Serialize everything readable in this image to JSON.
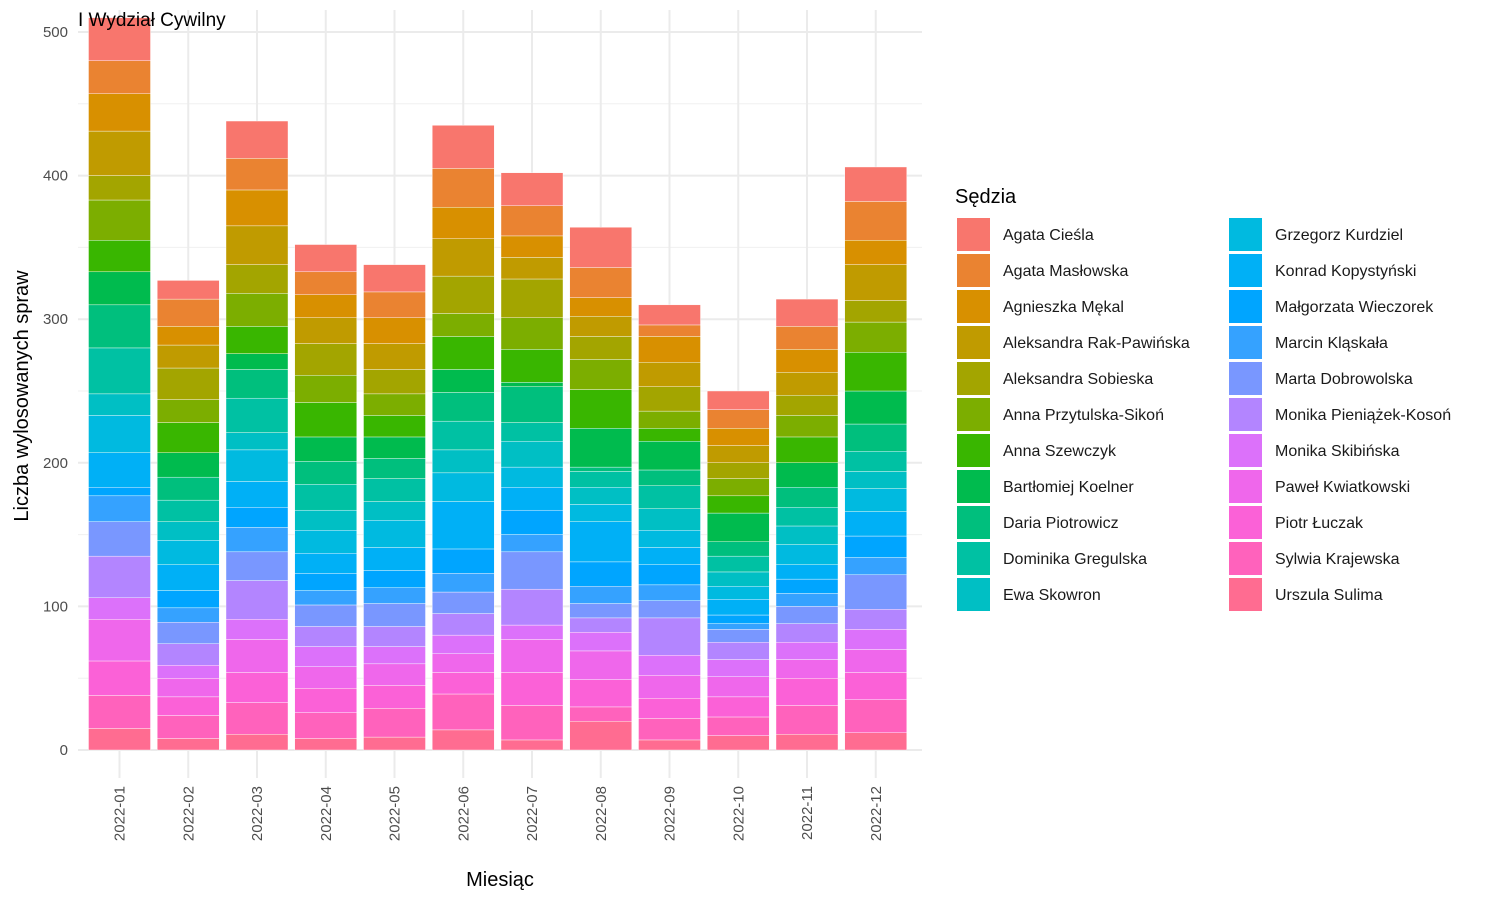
{
  "chart_data": {
    "type": "bar",
    "stacked": true,
    "title": "I Wydział Cywilny",
    "xlabel": "Miesiąc",
    "ylabel": "Liczba wylosowanych spraw",
    "ylim": [
      0,
      510
    ],
    "yticks": [
      0,
      100,
      200,
      300,
      400,
      500
    ],
    "grid": true,
    "legend_title": "Sędzia",
    "legend_position": "right",
    "categories": [
      "2022-01",
      "2022-02",
      "2022-03",
      "2022-04",
      "2022-05",
      "2022-06",
      "2022-07",
      "2022-08",
      "2022-09",
      "2022-10",
      "2022-11",
      "2022-12"
    ],
    "series": [
      {
        "name": "Agata Cieśla",
        "color": "#F8766D",
        "values": [
          30,
          13,
          26,
          19,
          19,
          30,
          23,
          28,
          14,
          13,
          19,
          24
        ]
      },
      {
        "name": "Agata Masłowska",
        "color": "#EA8331",
        "values": [
          23,
          19,
          22,
          16,
          18,
          27,
          21,
          21,
          8,
          13,
          16,
          27
        ]
      },
      {
        "name": "Agnieszka Mękal",
        "color": "#D89000",
        "values": [
          26,
          13,
          25,
          16,
          18,
          22,
          15,
          13,
          18,
          12,
          16,
          17
        ]
      },
      {
        "name": "Aleksandra Rak-Pawińska",
        "color": "#C09B00",
        "values": [
          31,
          16,
          27,
          18,
          18,
          26,
          15,
          14,
          17,
          12,
          16,
          25
        ]
      },
      {
        "name": "Aleksandra Sobieska",
        "color": "#A3A500",
        "values": [
          17,
          22,
          20,
          22,
          17,
          26,
          27,
          16,
          17,
          11,
          14,
          15
        ]
      },
      {
        "name": "Anna Przytulska-Sikoń",
        "color": "#7CAE00",
        "values": [
          28,
          16,
          23,
          19,
          15,
          16,
          22,
          21,
          12,
          12,
          15,
          21
        ]
      },
      {
        "name": "Anna Szewczyk",
        "color": "#39B600",
        "values": [
          22,
          21,
          19,
          24,
          15,
          23,
          23,
          27,
          9,
          12,
          18,
          27
        ]
      },
      {
        "name": "Bartłomiej Koelner",
        "color": "#00BB4E",
        "values": [
          23,
          17,
          11,
          17,
          15,
          16,
          3,
          27,
          20,
          20,
          17,
          23
        ]
      },
      {
        "name": "Daria Piotrowicz",
        "color": "#00BF7D",
        "values": [
          30,
          16,
          20,
          16,
          14,
          20,
          25,
          3,
          11,
          10,
          14,
          19
        ]
      },
      {
        "name": "Dominika Gregulska",
        "color": "#00C1A3",
        "values": [
          32,
          15,
          24,
          18,
          16,
          20,
          13,
          11,
          16,
          11,
          13,
          14
        ]
      },
      {
        "name": "Ewa Skowron",
        "color": "#00BFC4",
        "values": [
          15,
          13,
          12,
          14,
          13,
          16,
          18,
          12,
          15,
          10,
          13,
          12
        ]
      },
      {
        "name": "Grzegorz Kurdziel",
        "color": "#00BAE0",
        "values": [
          26,
          17,
          22,
          16,
          19,
          20,
          14,
          12,
          12,
          9,
          14,
          16
        ]
      },
      {
        "name": "Konrad Kopystyński",
        "color": "#00B0F6",
        "values": [
          24,
          18,
          18,
          14,
          16,
          33,
          16,
          28,
          12,
          11,
          10,
          17
        ]
      },
      {
        "name": "Małgorzata Wieczorek",
        "color": "#00A5FF",
        "values": [
          6,
          12,
          14,
          12,
          12,
          17,
          17,
          17,
          14,
          6,
          10,
          15
        ]
      },
      {
        "name": "Marcin Kląskała",
        "color": "#35A2FF",
        "values": [
          18,
          10,
          17,
          10,
          11,
          13,
          12,
          12,
          11,
          4,
          9,
          12
        ]
      },
      {
        "name": "Marta Dobrowolska",
        "color": "#7997FF",
        "values": [
          24,
          15,
          20,
          15,
          16,
          15,
          26,
          10,
          12,
          9,
          12,
          24
        ]
      },
      {
        "name": "Monika Pieniążek-Kosoń",
        "color": "#B385FF",
        "values": [
          29,
          15,
          27,
          14,
          14,
          15,
          25,
          10,
          26,
          12,
          13,
          14
        ]
      },
      {
        "name": "Monika Skibińska",
        "color": "#DC71FA",
        "values": [
          15,
          9,
          14,
          14,
          12,
          13,
          10,
          13,
          14,
          12,
          12,
          14
        ]
      },
      {
        "name": "Paweł Kwiatkowski",
        "color": "#EF67EB",
        "values": [
          29,
          13,
          23,
          15,
          15,
          13,
          23,
          20,
          16,
          14,
          13,
          16
        ]
      },
      {
        "name": "Piotr Łuczak",
        "color": "#FB61D7",
        "values": [
          24,
          13,
          21,
          17,
          16,
          15,
          23,
          19,
          14,
          14,
          19,
          19
        ]
      },
      {
        "name": "Sylwia Krajewska",
        "color": "#FF62BC",
        "values": [
          23,
          16,
          22,
          18,
          20,
          25,
          24,
          10,
          15,
          13,
          20,
          23
        ]
      },
      {
        "name": "Urszula Sulima",
        "color": "#FF6C91",
        "values": [
          15,
          8,
          11,
          8,
          9,
          14,
          7,
          20,
          7,
          10,
          11,
          12
        ]
      }
    ]
  }
}
